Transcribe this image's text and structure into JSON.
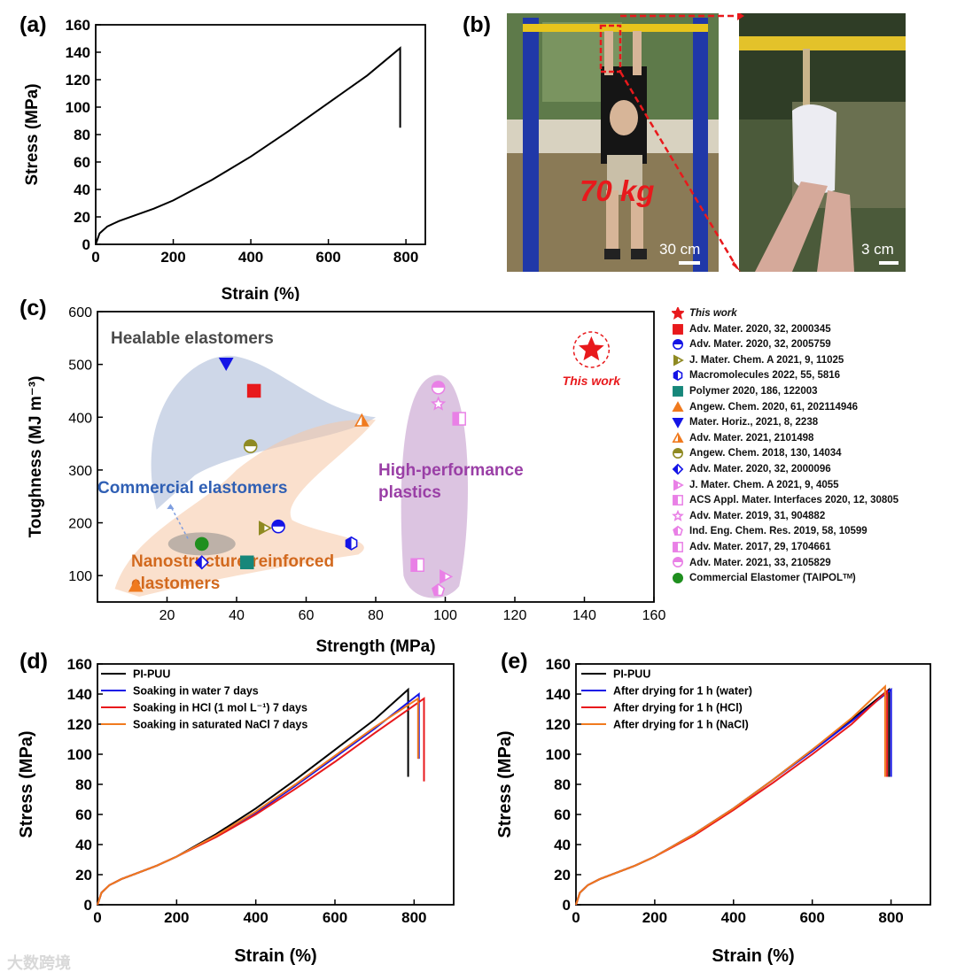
{
  "panels": {
    "a": "(a)",
    "b": "(b)",
    "c": "(c)",
    "d": "(d)",
    "e": "(e)"
  },
  "photo": {
    "weight_label": "70 kg",
    "scale_left": "30 cm",
    "scale_right": "3 cm"
  },
  "watermark": "大数跨境",
  "colors": {
    "red": "#e8191c",
    "blue": "#1414e6",
    "orange": "#f07a1e",
    "olive": "#8f8a22",
    "teal": "#16877a",
    "pink": "#e980e6",
    "green": "#1f8f1f",
    "black": "#000000"
  },
  "chart_data": [
    {
      "type": "line",
      "xlabel": "Strain (%)",
      "ylabel": "Stress (MPa)",
      "xlim": [
        0,
        850
      ],
      "ylim": [
        0,
        160
      ],
      "xticks": [
        0,
        200,
        400,
        600,
        800
      ],
      "yticks": [
        0,
        20,
        40,
        60,
        80,
        100,
        120,
        140,
        160
      ],
      "series": [
        {
          "color": "#000000",
          "points": [
            [
              0,
              0
            ],
            [
              10,
              8
            ],
            [
              30,
              13
            ],
            [
              60,
              17
            ],
            [
              100,
              21
            ],
            [
              150,
              26
            ],
            [
              200,
              32
            ],
            [
              300,
              47
            ],
            [
              400,
              64
            ],
            [
              500,
              83
            ],
            [
              600,
              103
            ],
            [
              700,
              123
            ],
            [
              785,
              143
            ],
            [
              785,
              85
            ]
          ]
        }
      ]
    },
    {
      "type": "scatter",
      "xlabel": "Strength (MPa)",
      "ylabel": "Toughness (MJ m⁻³)",
      "xlim": [
        0,
        160
      ],
      "ylim": [
        50,
        600
      ],
      "xticks": [
        20,
        40,
        60,
        80,
        100,
        120,
        140,
        160
      ],
      "yticks": [
        100,
        200,
        300,
        400,
        500,
        600
      ],
      "regions": [
        "Healable elastomers",
        "Commercial elastomers",
        "Nanostructure-reinforced elastomers",
        "High-performance plastics"
      ],
      "annotation": "This work",
      "points": [
        {
          "label": "This work",
          "x": 142,
          "y": 528,
          "marker": "star",
          "color": "#e8191c"
        },
        {
          "label": "Adv. Mater. 2020, 32, 2000345",
          "x": 45,
          "y": 450,
          "marker": "square",
          "color": "#e8191c"
        },
        {
          "label": "Adv. Mater. 2020, 32, 2005759",
          "x": 52,
          "y": 193,
          "marker": "circle-half",
          "color": "#1414e6"
        },
        {
          "label": "J. Mater. Chem. A 2021, 9, 11025",
          "x": 48,
          "y": 190,
          "marker": "triangle-right-half",
          "color": "#8f8a22"
        },
        {
          "label": "Macromolecules 2022, 55, 5816",
          "x": 73,
          "y": 161,
          "marker": "hexagon-half",
          "color": "#1414e6"
        },
        {
          "label": "Polymer 2020, 186, 122003",
          "x": 43,
          "y": 125,
          "marker": "square",
          "color": "#16877a"
        },
        {
          "label": "Angew. Chem. 2020, 61, 202114946",
          "x": 11,
          "y": 80,
          "marker": "triangle-up",
          "color": "#f07a1e"
        },
        {
          "label": "Mater. Horiz., 2021, 8, 2238",
          "x": 37,
          "y": 502,
          "marker": "triangle-down",
          "color": "#1414e6"
        },
        {
          "label": "Adv. Mater. 2021, 2101498",
          "x": 76,
          "y": 393,
          "marker": "triangle-up-half",
          "color": "#f07a1e"
        },
        {
          "label": "Angew. Chem. 2018, 130, 14034",
          "x": 44,
          "y": 345,
          "marker": "circle-half",
          "color": "#8f8a22"
        },
        {
          "label": "Adv. Mater. 2020, 32, 2000096",
          "x": 30,
          "y": 125,
          "marker": "diamond-half",
          "color": "#1414e6"
        },
        {
          "label": "J. Mater. Chem. A 2021, 9, 4055",
          "x": 100,
          "y": 98,
          "marker": "triangle-right-half",
          "color": "#e980e6"
        },
        {
          "label": "ACS Appl. Mater. Interfaces 2020, 12, 30805",
          "x": 104,
          "y": 397,
          "marker": "square-half",
          "color": "#e980e6"
        },
        {
          "label": "Adv. Mater. 2019, 31, 904882",
          "x": 98,
          "y": 425,
          "marker": "star-open",
          "color": "#e980e6"
        },
        {
          "label": "Ind. Eng. Chem. Res. 2019, 58, 10599",
          "x": 98,
          "y": 72,
          "marker": "pentagon-half",
          "color": "#e980e6"
        },
        {
          "label": "Adv. Mater. 2017, 29, 1704661",
          "x": 92,
          "y": 120,
          "marker": "square-half",
          "color": "#e980e6"
        },
        {
          "label": "Adv. Mater. 2021, 33, 2105829",
          "x": 98,
          "y": 456,
          "marker": "circle-half",
          "color": "#e980e6"
        },
        {
          "label": "Commercial Elastomer (TAIPOLᵀᴹ)",
          "x": 30,
          "y": 160,
          "marker": "circle",
          "color": "#1f8f1f"
        }
      ]
    },
    {
      "type": "line",
      "xlabel": "Strain (%)",
      "ylabel": "Stress (MPa)",
      "xlim": [
        0,
        900
      ],
      "ylim": [
        0,
        160
      ],
      "xticks": [
        0,
        200,
        400,
        600,
        800
      ],
      "yticks": [
        0,
        20,
        40,
        60,
        80,
        100,
        120,
        140,
        160
      ],
      "series": [
        {
          "name": "PI-PUU",
          "color": "#000000",
          "points": [
            [
              0,
              0
            ],
            [
              10,
              8
            ],
            [
              30,
              13
            ],
            [
              60,
              17
            ],
            [
              100,
              21
            ],
            [
              150,
              26
            ],
            [
              200,
              32
            ],
            [
              300,
              47
            ],
            [
              400,
              64
            ],
            [
              500,
              83
            ],
            [
              600,
              103
            ],
            [
              700,
              123
            ],
            [
              785,
              143
            ],
            [
              785,
              85
            ]
          ]
        },
        {
          "name": "Soaking in water 7 days",
          "color": "#1414e6",
          "points": [
            [
              0,
              0
            ],
            [
              10,
              8
            ],
            [
              30,
              13
            ],
            [
              60,
              17
            ],
            [
              100,
              21
            ],
            [
              150,
              26
            ],
            [
              200,
              32
            ],
            [
              300,
              46
            ],
            [
              400,
              61
            ],
            [
              500,
              79
            ],
            [
              600,
              98
            ],
            [
              700,
              117
            ],
            [
              812,
              140
            ],
            [
              812,
              97
            ]
          ]
        },
        {
          "name": "Soaking in HCl (1 mol L⁻¹) 7 days",
          "color": "#e8191c",
          "points": [
            [
              0,
              0
            ],
            [
              10,
              8
            ],
            [
              30,
              13
            ],
            [
              60,
              17
            ],
            [
              100,
              21
            ],
            [
              150,
              26
            ],
            [
              200,
              32
            ],
            [
              300,
              45
            ],
            [
              400,
              60
            ],
            [
              500,
              77
            ],
            [
              600,
              95
            ],
            [
              700,
              114
            ],
            [
              825,
              137
            ],
            [
              825,
              82
            ]
          ]
        },
        {
          "name": "Soaking in saturated NaCl 7 days",
          "color": "#f07a1e",
          "points": [
            [
              0,
              0
            ],
            [
              10,
              8
            ],
            [
              30,
              13
            ],
            [
              60,
              17
            ],
            [
              100,
              21
            ],
            [
              150,
              26
            ],
            [
              200,
              32
            ],
            [
              300,
              46
            ],
            [
              400,
              62
            ],
            [
              500,
              80
            ],
            [
              600,
              99
            ],
            [
              700,
              118
            ],
            [
              810,
              137
            ],
            [
              810,
              97
            ]
          ]
        }
      ]
    },
    {
      "type": "line",
      "xlabel": "Strain (%)",
      "ylabel": "Stress (MPa)",
      "xlim": [
        0,
        900
      ],
      "ylim": [
        0,
        160
      ],
      "xticks": [
        0,
        200,
        400,
        600,
        800
      ],
      "yticks": [
        0,
        20,
        40,
        60,
        80,
        100,
        120,
        140,
        160
      ],
      "series": [
        {
          "name": "PI-PUU",
          "color": "#000000",
          "points": [
            [
              0,
              0
            ],
            [
              10,
              8
            ],
            [
              30,
              13
            ],
            [
              60,
              17
            ],
            [
              100,
              21
            ],
            [
              150,
              26
            ],
            [
              200,
              32
            ],
            [
              300,
              47
            ],
            [
              400,
              64
            ],
            [
              500,
              83
            ],
            [
              600,
              103
            ],
            [
              700,
              123
            ],
            [
              795,
              143
            ],
            [
              795,
              85
            ]
          ]
        },
        {
          "name": "After drying for 1 h (water)",
          "color": "#1414e6",
          "points": [
            [
              0,
              0
            ],
            [
              10,
              8
            ],
            [
              30,
              13
            ],
            [
              60,
              17
            ],
            [
              100,
              21
            ],
            [
              150,
              26
            ],
            [
              200,
              32
            ],
            [
              300,
              47
            ],
            [
              400,
              64
            ],
            [
              500,
              83
            ],
            [
              600,
              102
            ],
            [
              700,
              122
            ],
            [
              800,
              143
            ],
            [
              800,
              85
            ]
          ]
        },
        {
          "name": "After drying for 1 h (HCl)",
          "color": "#e8191c",
          "points": [
            [
              0,
              0
            ],
            [
              10,
              8
            ],
            [
              30,
              13
            ],
            [
              60,
              17
            ],
            [
              100,
              21
            ],
            [
              150,
              26
            ],
            [
              200,
              32
            ],
            [
              300,
              46
            ],
            [
              400,
              63
            ],
            [
              500,
              81
            ],
            [
              600,
              100
            ],
            [
              700,
              120
            ],
            [
              790,
              142
            ],
            [
              790,
              85
            ]
          ]
        },
        {
          "name": "After drying for 1 h (NaCl)",
          "color": "#f07a1e",
          "points": [
            [
              0,
              0
            ],
            [
              10,
              8
            ],
            [
              30,
              13
            ],
            [
              60,
              17
            ],
            [
              100,
              21
            ],
            [
              150,
              26
            ],
            [
              200,
              32
            ],
            [
              300,
              47
            ],
            [
              400,
              64
            ],
            [
              500,
              83
            ],
            [
              600,
              103
            ],
            [
              700,
              124
            ],
            [
              785,
              145
            ],
            [
              785,
              85
            ]
          ]
        }
      ]
    }
  ]
}
